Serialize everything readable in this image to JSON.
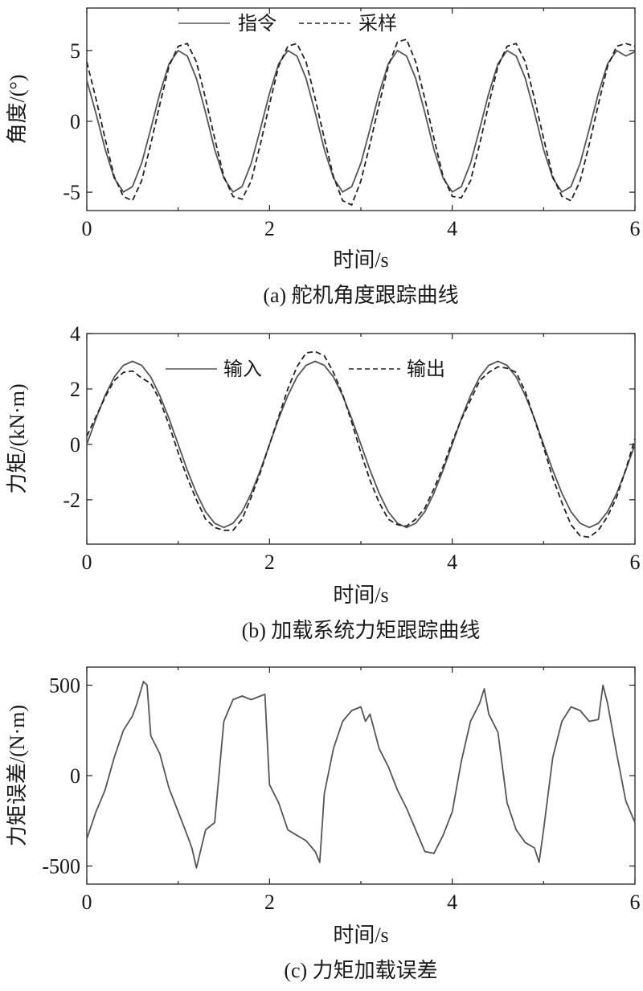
{
  "chart_data": [
    {
      "type": "line",
      "panel_caption": "(a) 舵机角度跟踪曲线",
      "xlabel": "时间/s",
      "ylabel": "角度/(°)",
      "xlim": [
        0,
        6
      ],
      "ylim": [
        -6.3,
        8.0
      ],
      "xticks": [
        0,
        2,
        4,
        6
      ],
      "yticks": [
        -5,
        0,
        5
      ],
      "grid": false,
      "legend_position": "top-center",
      "series": [
        {
          "name": "指令",
          "style": "solid",
          "color": "#555555",
          "x": [
            0.0,
            0.1,
            0.2,
            0.3,
            0.4,
            0.5,
            0.6,
            0.7,
            0.8,
            0.9,
            1.0,
            1.1,
            1.2,
            1.3,
            1.4,
            1.5,
            1.6,
            1.7,
            1.8,
            1.9,
            2.0,
            2.1,
            2.2,
            2.3,
            2.4,
            2.5,
            2.6,
            2.7,
            2.8,
            2.9,
            3.0,
            3.1,
            3.2,
            3.3,
            3.4,
            3.5,
            3.6,
            3.7,
            3.8,
            3.9,
            4.0,
            4.1,
            4.2,
            4.3,
            4.4,
            4.5,
            4.6,
            4.7,
            4.8,
            4.9,
            5.0,
            5.1,
            5.2,
            5.3,
            5.4,
            5.5,
            5.6,
            5.7,
            5.8,
            5.9,
            6.0
          ],
          "y": [
            2.9,
            0.56,
            -1.95,
            -4.0,
            -4.99,
            -4.61,
            -2.96,
            -0.53,
            1.98,
            4.06,
            5.0,
            4.62,
            3.03,
            0.61,
            -1.99,
            -4.0,
            -4.99,
            -4.61,
            -2.96,
            -0.53,
            1.98,
            4.06,
            5.0,
            4.62,
            3.03,
            0.61,
            -1.99,
            -4.0,
            -4.99,
            -4.61,
            -2.96,
            -0.53,
            1.98,
            4.06,
            5.0,
            4.62,
            3.03,
            0.61,
            -1.99,
            -4.0,
            -4.99,
            -4.61,
            -2.96,
            -0.53,
            1.98,
            4.06,
            5.0,
            4.62,
            3.03,
            0.61,
            -1.99,
            -4.0,
            -4.99,
            -4.61,
            -2.96,
            -0.53,
            1.98,
            4.06,
            5.0,
            4.62,
            4.9
          ]
        },
        {
          "name": "采样",
          "style": "dashed",
          "color": "#222222",
          "x": [
            0.0,
            0.1,
            0.2,
            0.3,
            0.4,
            0.5,
            0.6,
            0.7,
            0.8,
            0.9,
            1.0,
            1.1,
            1.2,
            1.3,
            1.4,
            1.5,
            1.6,
            1.7,
            1.8,
            1.9,
            2.0,
            2.1,
            2.2,
            2.3,
            2.4,
            2.5,
            2.6,
            2.7,
            2.8,
            2.9,
            3.0,
            3.1,
            3.2,
            3.3,
            3.4,
            3.5,
            3.6,
            3.7,
            3.8,
            3.9,
            4.0,
            4.1,
            4.2,
            4.3,
            4.4,
            4.5,
            4.6,
            4.7,
            4.8,
            4.9,
            5.0,
            5.1,
            5.2,
            5.3,
            5.4,
            5.5,
            5.6,
            5.7,
            5.8,
            5.9,
            6.0
          ],
          "y": [
            4.2,
            1.6,
            -1.2,
            -3.9,
            -5.3,
            -5.6,
            -4.2,
            -1.6,
            1.2,
            3.9,
            5.3,
            5.5,
            4.2,
            1.6,
            -1.2,
            -3.9,
            -5.3,
            -5.5,
            -4.2,
            -1.6,
            1.2,
            3.9,
            5.3,
            5.5,
            4.2,
            1.6,
            -1.2,
            -3.9,
            -5.6,
            -5.9,
            -4.2,
            -1.6,
            1.2,
            3.9,
            5.6,
            5.8,
            4.2,
            1.6,
            -1.2,
            -3.9,
            -5.3,
            -5.4,
            -4.2,
            -1.6,
            1.2,
            3.9,
            5.3,
            5.5,
            4.2,
            1.6,
            -1.2,
            -3.9,
            -5.3,
            -5.6,
            -4.2,
            -1.6,
            1.2,
            3.9,
            5.3,
            5.5,
            5.3
          ]
        }
      ]
    },
    {
      "type": "line",
      "panel_caption": "(b) 加载系统力矩跟踪曲线",
      "xlabel": "时间/s",
      "ylabel": "力矩/(kN·m)",
      "xlim": [
        0,
        6
      ],
      "ylim": [
        -3.6,
        4.0
      ],
      "xticks": [
        0,
        2,
        4,
        6
      ],
      "yticks": [
        -2,
        0,
        2,
        4
      ],
      "grid": false,
      "legend_position": "top",
      "series": [
        {
          "name": "输入",
          "style": "solid",
          "color": "#555555",
          "x": [
            0.0,
            0.1,
            0.2,
            0.3,
            0.4,
            0.5,
            0.6,
            0.7,
            0.8,
            0.9,
            1.0,
            1.1,
            1.2,
            1.3,
            1.4,
            1.5,
            1.6,
            1.7,
            1.8,
            1.9,
            2.0,
            2.1,
            2.2,
            2.3,
            2.4,
            2.5,
            2.6,
            2.7,
            2.8,
            2.9,
            3.0,
            3.1,
            3.2,
            3.3,
            3.4,
            3.5,
            3.6,
            3.7,
            3.8,
            3.9,
            4.0,
            4.1,
            4.2,
            4.3,
            4.4,
            4.5,
            4.6,
            4.7,
            4.8,
            4.9,
            5.0,
            5.1,
            5.2,
            5.3,
            5.4,
            5.5,
            5.6,
            5.7,
            5.8,
            5.9,
            6.0
          ],
          "y": [
            0.0,
            0.93,
            1.76,
            2.43,
            2.85,
            3.0,
            2.85,
            2.43,
            1.76,
            0.93,
            0.0,
            -0.93,
            -1.76,
            -2.43,
            -2.85,
            -3.0,
            -2.85,
            -2.43,
            -1.76,
            -0.93,
            0.0,
            0.93,
            1.76,
            2.43,
            2.85,
            3.0,
            2.85,
            2.43,
            1.76,
            0.93,
            0.0,
            -0.93,
            -1.76,
            -2.43,
            -2.85,
            -3.0,
            -2.85,
            -2.43,
            -1.76,
            -0.93,
            0.0,
            0.93,
            1.76,
            2.43,
            2.85,
            3.0,
            2.85,
            2.43,
            1.76,
            0.93,
            0.0,
            -0.93,
            -1.76,
            -2.43,
            -2.85,
            -3.0,
            -2.85,
            -2.43,
            -1.76,
            -0.93,
            0.0
          ]
        },
        {
          "name": "输出",
          "style": "dashed",
          "color": "#222222",
          "x": [
            0.0,
            0.1,
            0.2,
            0.3,
            0.4,
            0.5,
            0.6,
            0.7,
            0.8,
            0.9,
            1.0,
            1.1,
            1.2,
            1.3,
            1.4,
            1.5,
            1.6,
            1.7,
            1.8,
            1.9,
            2.0,
            2.1,
            2.2,
            2.3,
            2.4,
            2.5,
            2.6,
            2.7,
            2.8,
            2.9,
            3.0,
            3.1,
            3.2,
            3.3,
            3.4,
            3.5,
            3.6,
            3.7,
            3.8,
            3.9,
            4.0,
            4.1,
            4.2,
            4.3,
            4.4,
            4.5,
            4.6,
            4.7,
            4.8,
            4.9,
            5.0,
            5.1,
            5.2,
            5.3,
            5.4,
            5.5,
            5.6,
            5.7,
            5.8,
            5.9,
            6.0
          ],
          "y": [
            0.3,
            1.0,
            1.7,
            2.3,
            2.6,
            2.65,
            2.4,
            2.2,
            1.6,
            0.7,
            -0.3,
            -1.2,
            -2.0,
            -2.7,
            -3.0,
            -3.1,
            -3.1,
            -2.7,
            -1.9,
            -1.0,
            0.0,
            1.0,
            2.0,
            2.8,
            3.3,
            3.35,
            3.2,
            2.6,
            1.8,
            0.8,
            -0.3,
            -1.3,
            -2.1,
            -2.7,
            -2.9,
            -2.95,
            -2.7,
            -2.3,
            -1.6,
            -0.8,
            0.1,
            0.9,
            1.6,
            2.3,
            2.6,
            2.8,
            2.75,
            2.6,
            1.9,
            0.9,
            -0.1,
            -1.2,
            -2.1,
            -2.9,
            -3.3,
            -3.35,
            -3.1,
            -2.6,
            -1.9,
            -0.9,
            0.2
          ]
        }
      ]
    },
    {
      "type": "line",
      "panel_caption": "(c) 力矩加载误差",
      "xlabel": "时间/s",
      "ylabel": "力矩误差/(N·m)",
      "xlim": [
        0,
        6
      ],
      "ylim": [
        -600,
        600
      ],
      "xticks": [
        0,
        2,
        4,
        6
      ],
      "yticks": [
        -500,
        0,
        500
      ],
      "grid": false,
      "series": [
        {
          "name": "",
          "style": "solid",
          "color": "#555555",
          "x": [
            0.0,
            0.1,
            0.2,
            0.3,
            0.4,
            0.5,
            0.55,
            0.62,
            0.66,
            0.7,
            0.8,
            0.9,
            1.0,
            1.1,
            1.15,
            1.2,
            1.3,
            1.4,
            1.5,
            1.6,
            1.7,
            1.8,
            1.9,
            1.95,
            2.0,
            2.1,
            2.2,
            2.3,
            2.4,
            2.5,
            2.55,
            2.6,
            2.7,
            2.8,
            2.9,
            3.0,
            3.05,
            3.1,
            3.2,
            3.3,
            3.4,
            3.5,
            3.6,
            3.7,
            3.8,
            3.9,
            4.0,
            4.1,
            4.2,
            4.3,
            4.35,
            4.4,
            4.5,
            4.6,
            4.7,
            4.8,
            4.9,
            4.95,
            5.0,
            5.1,
            5.2,
            5.3,
            5.4,
            5.5,
            5.6,
            5.65,
            5.7,
            5.8,
            5.9,
            6.0
          ],
          "y": [
            -350,
            -200,
            -80,
            100,
            250,
            330,
            400,
            520,
            500,
            220,
            120,
            -70,
            -200,
            -330,
            -400,
            -510,
            -300,
            -260,
            300,
            420,
            440,
            420,
            440,
            450,
            -50,
            -150,
            -300,
            -330,
            -360,
            -420,
            -480,
            -100,
            150,
            300,
            360,
            380,
            300,
            340,
            150,
            50,
            -80,
            -180,
            -300,
            -420,
            -430,
            -330,
            -200,
            80,
            300,
            400,
            480,
            340,
            240,
            -150,
            -300,
            -370,
            -400,
            -480,
            -300,
            100,
            300,
            380,
            360,
            300,
            310,
            500,
            400,
            120,
            -140,
            -260
          ]
        }
      ]
    }
  ],
  "legend_a": {
    "solid_label": "指令",
    "dashed_label": "采样"
  },
  "legend_b": {
    "solid_label": "输入",
    "dashed_label": "输出"
  }
}
